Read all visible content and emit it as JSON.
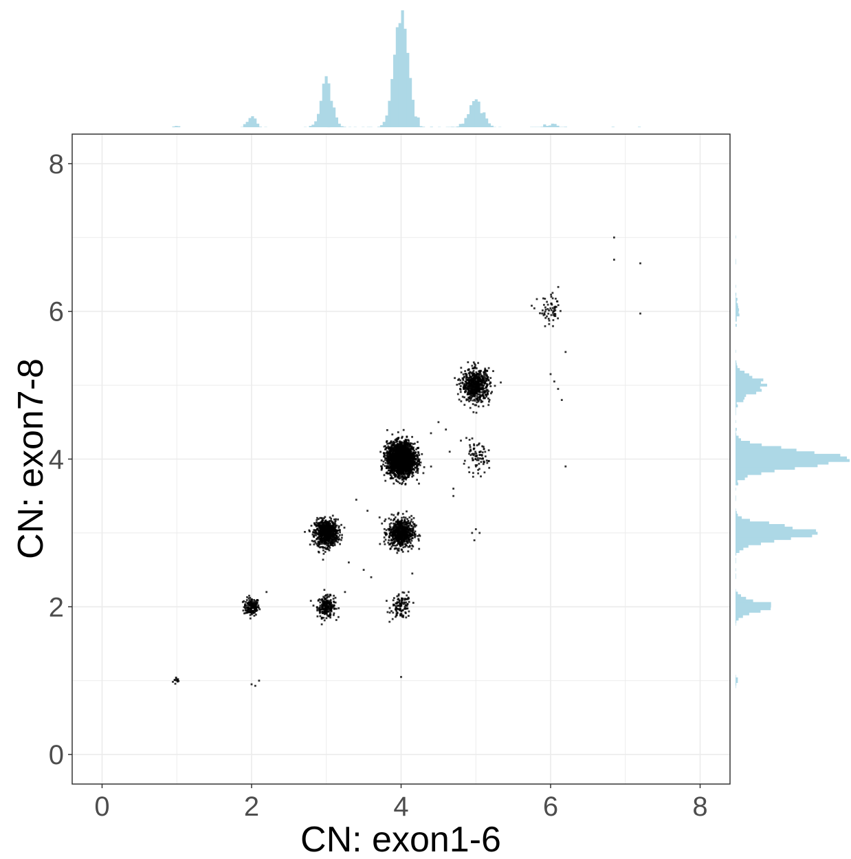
{
  "chart_data": {
    "type": "scatter",
    "xlabel": "CN: exon1-6",
    "ylabel": "CN: exon7-8",
    "xlim": [
      -0.4,
      8.4
    ],
    "ylim": [
      -0.4,
      8.4
    ],
    "x_ticks": [
      0,
      2,
      4,
      6,
      8
    ],
    "y_ticks": [
      0,
      2,
      4,
      6,
      8
    ],
    "grid": true,
    "point_color": "#000000",
    "marginal_color": "#add8e6",
    "marginal_histograms": [
      "top",
      "right"
    ],
    "clusters": [
      {
        "x": 1,
        "y": 1,
        "n": 12,
        "sd": 0.03
      },
      {
        "x": 2,
        "y": 2,
        "n": 160,
        "sd": 0.06
      },
      {
        "x": 3,
        "y": 2,
        "n": 220,
        "sd": 0.07
      },
      {
        "x": 4,
        "y": 2,
        "n": 110,
        "sd": 0.08
      },
      {
        "x": 3,
        "y": 3,
        "n": 750,
        "sd": 0.09
      },
      {
        "x": 4,
        "y": 3,
        "n": 650,
        "sd": 0.1
      },
      {
        "x": 4,
        "y": 4,
        "n": 2200,
        "sd": 0.11
      },
      {
        "x": 5,
        "y": 4,
        "n": 80,
        "sd": 0.1
      },
      {
        "x": 5,
        "y": 5,
        "n": 600,
        "sd": 0.11
      },
      {
        "x": 6,
        "y": 6,
        "n": 60,
        "sd": 0.1
      }
    ],
    "outliers": [
      [
        6.85,
        7.0
      ],
      [
        6.85,
        6.7
      ],
      [
        7.2,
        6.65
      ],
      [
        7.2,
        5.97
      ],
      [
        6.0,
        5.15
      ],
      [
        6.05,
        5.05
      ],
      [
        6.1,
        4.95
      ],
      [
        6.15,
        4.8
      ],
      [
        6.2,
        3.9
      ],
      [
        6.2,
        5.45
      ],
      [
        5.0,
        3.05
      ],
      [
        4.95,
        3.0
      ],
      [
        5.05,
        3.0
      ],
      [
        4.98,
        2.9
      ],
      [
        4.0,
        1.05
      ],
      [
        2.0,
        0.95
      ],
      [
        2.05,
        0.93
      ],
      [
        2.1,
        1.0
      ],
      [
        4.7,
        3.6
      ],
      [
        4.7,
        3.5
      ],
      [
        4.6,
        4.4
      ],
      [
        4.5,
        4.5
      ],
      [
        4.4,
        4.35
      ],
      [
        4.65,
        4.1
      ],
      [
        4.8,
        4.25
      ],
      [
        3.4,
        3.45
      ],
      [
        3.3,
        2.6
      ],
      [
        3.5,
        2.5
      ],
      [
        3.25,
        2.2
      ],
      [
        3.1,
        2.15
      ],
      [
        3.6,
        2.4
      ],
      [
        3.55,
        3.3
      ],
      [
        2.2,
        2.2
      ],
      [
        4.15,
        2.45
      ],
      [
        4.1,
        2.2
      ]
    ]
  }
}
